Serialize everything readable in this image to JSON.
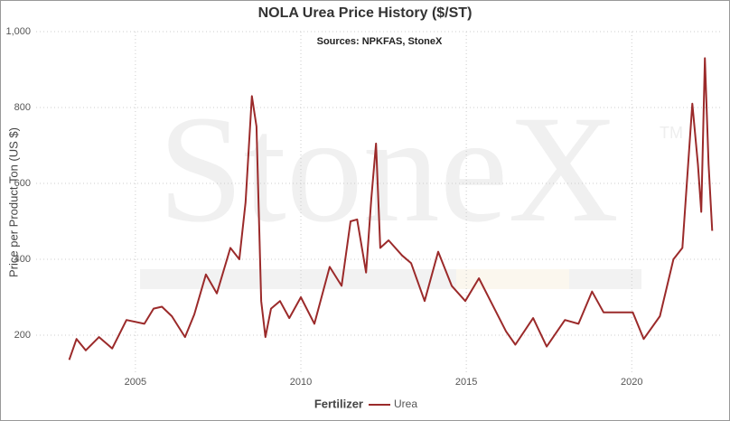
{
  "chart_data": {
    "type": "line",
    "title": "NOLA Urea Price History ($/ST)",
    "subtitle": "Sources: NPKFAS, StoneX",
    "watermark": "StoneX",
    "watermark_mark": "TM",
    "y_label": "Price per Product Ton (US $)",
    "legend_title": "Fertilizer",
    "legend_position": "bottom",
    "grid": true,
    "xlim": [
      2002,
      2022.75
    ],
    "xticks": [
      2005,
      2010,
      2015,
      2020
    ],
    "ylim": [
      100,
      1000
    ],
    "yticks": [
      200,
      400,
      600,
      800,
      {
        "value": 1000,
        "label": "1,000"
      }
    ],
    "x": [
      2003.0,
      2003.22,
      2003.5,
      2003.9,
      2004.3,
      2004.73,
      2005.27,
      2005.55,
      2005.8,
      2006.1,
      2006.5,
      2006.78,
      2007.13,
      2007.46,
      2007.87,
      2008.14,
      2008.33,
      2008.52,
      2008.66,
      2008.8,
      2008.93,
      2009.1,
      2009.37,
      2009.65,
      2010.0,
      2010.41,
      2010.87,
      2011.23,
      2011.5,
      2011.7,
      2011.97,
      2012.13,
      2012.27,
      2012.4,
      2012.65,
      2013.06,
      2013.33,
      2013.74,
      2014.15,
      2014.56,
      2014.97,
      2015.38,
      2015.79,
      2016.2,
      2016.48,
      2017.02,
      2017.43,
      2017.98,
      2018.39,
      2018.8,
      2019.15,
      2019.62,
      2020.03,
      2020.36,
      2020.85,
      2021.26,
      2021.53,
      2021.83,
      2022.0,
      2022.1,
      2022.21,
      2022.32,
      2022.43
    ],
    "series": [
      {
        "name": "Urea",
        "color": "#9b2a2a",
        "values": [
          135,
          190,
          160,
          195,
          165,
          240,
          230,
          270,
          275,
          250,
          195,
          255,
          360,
          310,
          430,
          400,
          550,
          830,
          750,
          290,
          195,
          270,
          290,
          245,
          300,
          230,
          380,
          330,
          500,
          505,
          365,
          560,
          705,
          430,
          450,
          410,
          390,
          290,
          420,
          330,
          290,
          350,
          280,
          210,
          175,
          245,
          170,
          240,
          230,
          315,
          260,
          260,
          260,
          190,
          250,
          400,
          430,
          810,
          650,
          525,
          930,
          650,
          475
        ]
      }
    ]
  }
}
